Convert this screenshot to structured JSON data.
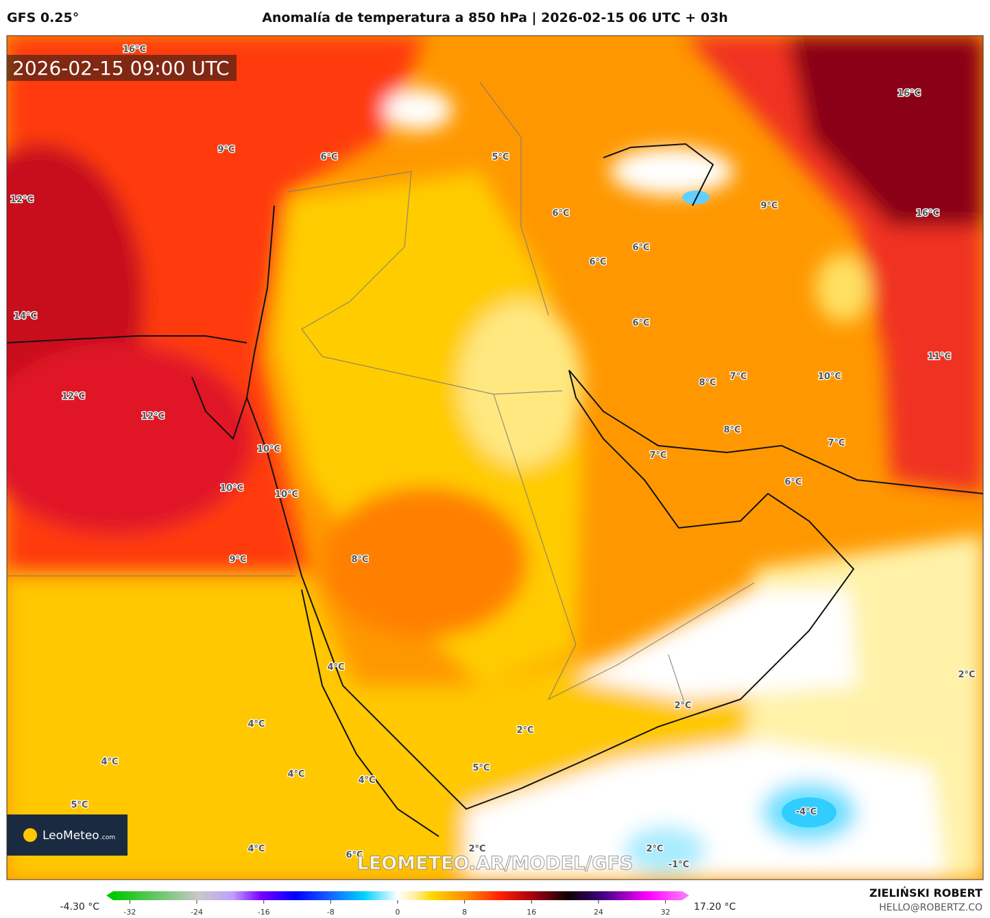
{
  "header": {
    "model": "GFS 0.25°",
    "title": "Anomalía de temperatura a 850 hPa | 2026-02-15 06 UTC + 03h"
  },
  "map": {
    "timestamp": "2026-02-15 09:00 UTC",
    "watermark": "LEOMETEO.AR/MODEL/GFS",
    "contour_labels": [
      "16°C",
      "9°C",
      "6°C",
      "5°C",
      "12°C",
      "6°C",
      "6°C",
      "6°C",
      "9°C",
      "16°C",
      "16°C",
      "14°C",
      "6°C",
      "11°C",
      "8°C",
      "7°C",
      "10°C",
      "12°C",
      "12°C",
      "10°C",
      "8°C",
      "7°C",
      "7°C",
      "10°C",
      "10°C",
      "6°C",
      "9°C",
      "8°C",
      "4°C",
      "2°C",
      "4°C",
      "2°C",
      "2°C",
      "4°C",
      "4°C",
      "4°C",
      "5°C",
      "5°C",
      "-4°C",
      "4°C",
      "2°C",
      "2°C",
      "6°C",
      "-1°C"
    ]
  },
  "logo": {
    "name": "LeoMeteo",
    "suffix": ".com"
  },
  "colorbar": {
    "min_label": "-4.30 °C",
    "max_label": "17.20 °C",
    "range": [
      -34,
      34
    ],
    "ticks": [
      -32,
      -24,
      -16,
      -8,
      0,
      8,
      16,
      24,
      32
    ]
  },
  "credit": {
    "author": "ZIELIŃSKI ROBERT",
    "contact": "HELLO@ROBERTZ.CO"
  }
}
